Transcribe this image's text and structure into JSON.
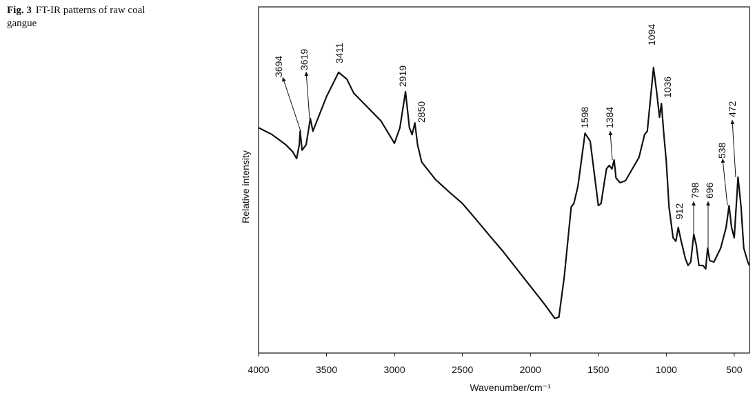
{
  "caption": {
    "label": "Fig. 3",
    "text": "FT-IR patterns of raw coal gangue"
  },
  "chart_data": {
    "type": "line",
    "xlabel": "Wavenumber/cm⁻¹",
    "ylabel": "Relative intensity",
    "xlim": [
      4000,
      388
    ],
    "ylim": [
      0,
      100
    ],
    "xticks": [
      4000,
      3500,
      3000,
      2500,
      2000,
      1500,
      1000,
      500
    ],
    "color": "#111111",
    "x": [
      4000,
      3900,
      3800,
      3750,
      3720,
      3700,
      3694,
      3680,
      3650,
      3619,
      3600,
      3500,
      3411,
      3350,
      3300,
      3200,
      3100,
      3000,
      2960,
      2919,
      2890,
      2870,
      2850,
      2830,
      2800,
      2700,
      2600,
      2500,
      2400,
      2300,
      2200,
      2100,
      2000,
      1900,
      1820,
      1790,
      1750,
      1700,
      1680,
      1650,
      1598,
      1560,
      1500,
      1480,
      1440,
      1420,
      1400,
      1384,
      1370,
      1340,
      1300,
      1250,
      1200,
      1160,
      1140,
      1110,
      1094,
      1070,
      1050,
      1036,
      1020,
      1000,
      980,
      950,
      930,
      912,
      890,
      860,
      840,
      820,
      798,
      780,
      760,
      730,
      710,
      696,
      680,
      650,
      600,
      560,
      538,
      520,
      500,
      472,
      450,
      430,
      400,
      388
    ],
    "values": [
      65.1,
      63.1,
      60.2,
      58.2,
      56.2,
      60.2,
      64.1,
      58.6,
      60.2,
      67.7,
      64.1,
      74.1,
      81.1,
      79.1,
      75.1,
      71.1,
      67.1,
      60.6,
      65.1,
      75.5,
      65.1,
      63.1,
      66.5,
      60.2,
      55.2,
      50.2,
      46.6,
      43.2,
      38.6,
      33.9,
      29.3,
      24.3,
      19.3,
      14.3,
      10.0,
      10.4,
      22.3,
      42.2,
      43.2,
      48.2,
      63.5,
      61.2,
      42.6,
      43.2,
      53.2,
      54.2,
      53.2,
      55.8,
      50.6,
      49.2,
      49.8,
      53.2,
      56.6,
      63.1,
      64.1,
      76.1,
      82.5,
      75.1,
      68.1,
      72.1,
      64.1,
      55.2,
      42.2,
      33.3,
      32.3,
      36.3,
      32.3,
      27.3,
      25.3,
      26.3,
      34.3,
      31.3,
      25.3,
      25.3,
      24.3,
      30.3,
      26.7,
      26.3,
      30.3,
      36.3,
      42.6,
      36.3,
      33.3,
      50.8,
      42.2,
      30.3,
      26.3,
      25.3
    ],
    "annotations": [
      "3694",
      "3619",
      "3411",
      "2919",
      "2850",
      "1598",
      "1384",
      "1094",
      "1036",
      "912",
      "798",
      "696",
      "538",
      "472"
    ]
  }
}
